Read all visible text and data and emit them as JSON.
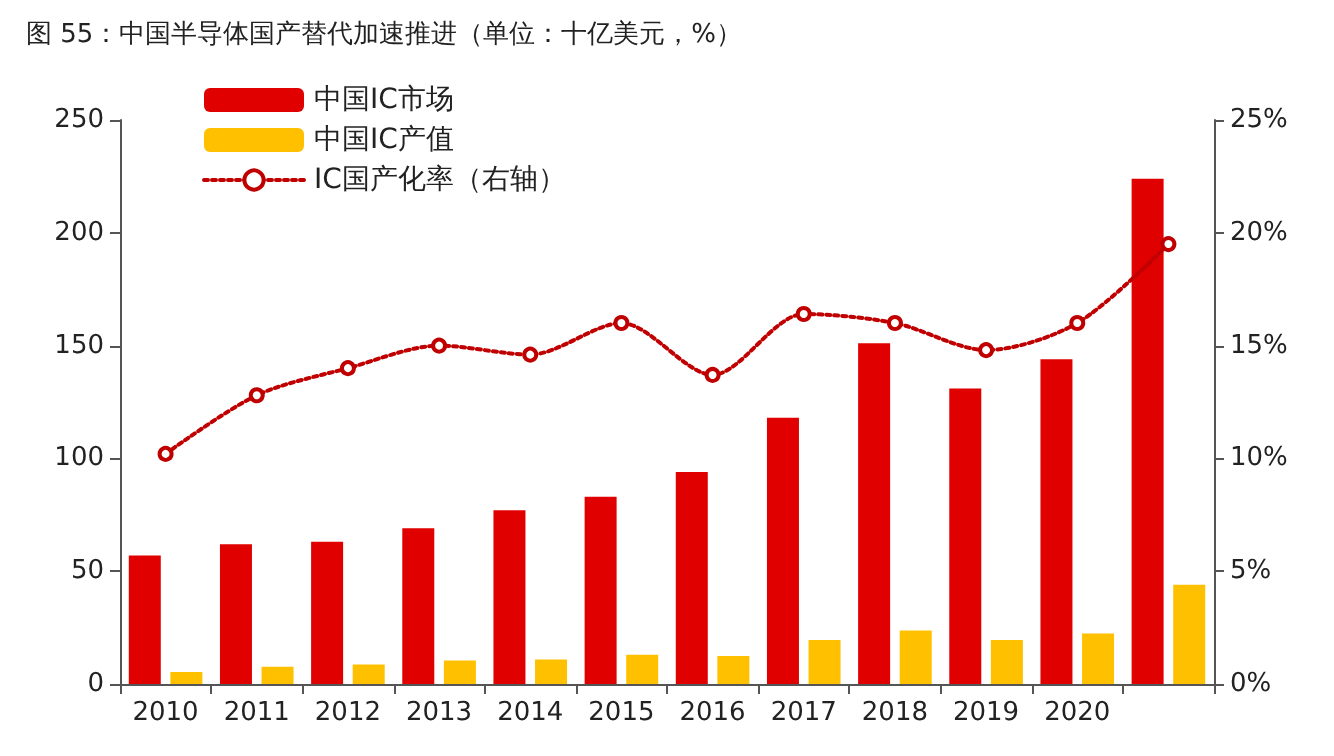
{
  "chart_data": {
    "type": "bar",
    "title": "图 55：中国半导体国产替代加速推进（单位：十亿美元，%）",
    "categories": [
      "2010",
      "2011",
      "2012",
      "2013",
      "2014",
      "2015",
      "2016",
      "2017",
      "2018",
      "2019",
      "2020",
      null
    ],
    "series": [
      {
        "name": "中国IC市场",
        "color": "#e00000",
        "values": [
          57,
          62,
          63,
          69,
          77,
          83,
          94,
          118,
          151,
          131,
          144,
          224
        ]
      },
      {
        "name": "中国IC产值",
        "color": "#ffc000",
        "values": [
          5.3,
          7.7,
          8.6,
          10.4,
          10.9,
          13,
          12.4,
          19.5,
          23.7,
          19.5,
          22.4,
          44
        ]
      },
      {
        "name": "IC国产化率（右轴）",
        "type": "line",
        "axis": "y2",
        "color": "#c00000",
        "marker": "circle",
        "line_style": "dotted",
        "values": [
          10.2,
          12.8,
          14.0,
          15.0,
          14.6,
          16.0,
          13.7,
          16.4,
          16.0,
          14.8,
          16.0,
          19.5
        ]
      }
    ],
    "ylim": [
      0,
      250
    ],
    "yticks": [
      0,
      50,
      100,
      150,
      200,
      250
    ],
    "y2lim": [
      0,
      25
    ],
    "y2ticks": [
      {
        "value": 0,
        "label": "0%"
      },
      {
        "value": 5,
        "label": "5%"
      },
      {
        "value": 10,
        "label": "10%"
      },
      {
        "value": 15,
        "label": "15%"
      },
      {
        "value": 20,
        "label": "20%"
      },
      {
        "value": 25,
        "label": "25%"
      }
    ],
    "grid": false,
    "legend": "top left"
  }
}
